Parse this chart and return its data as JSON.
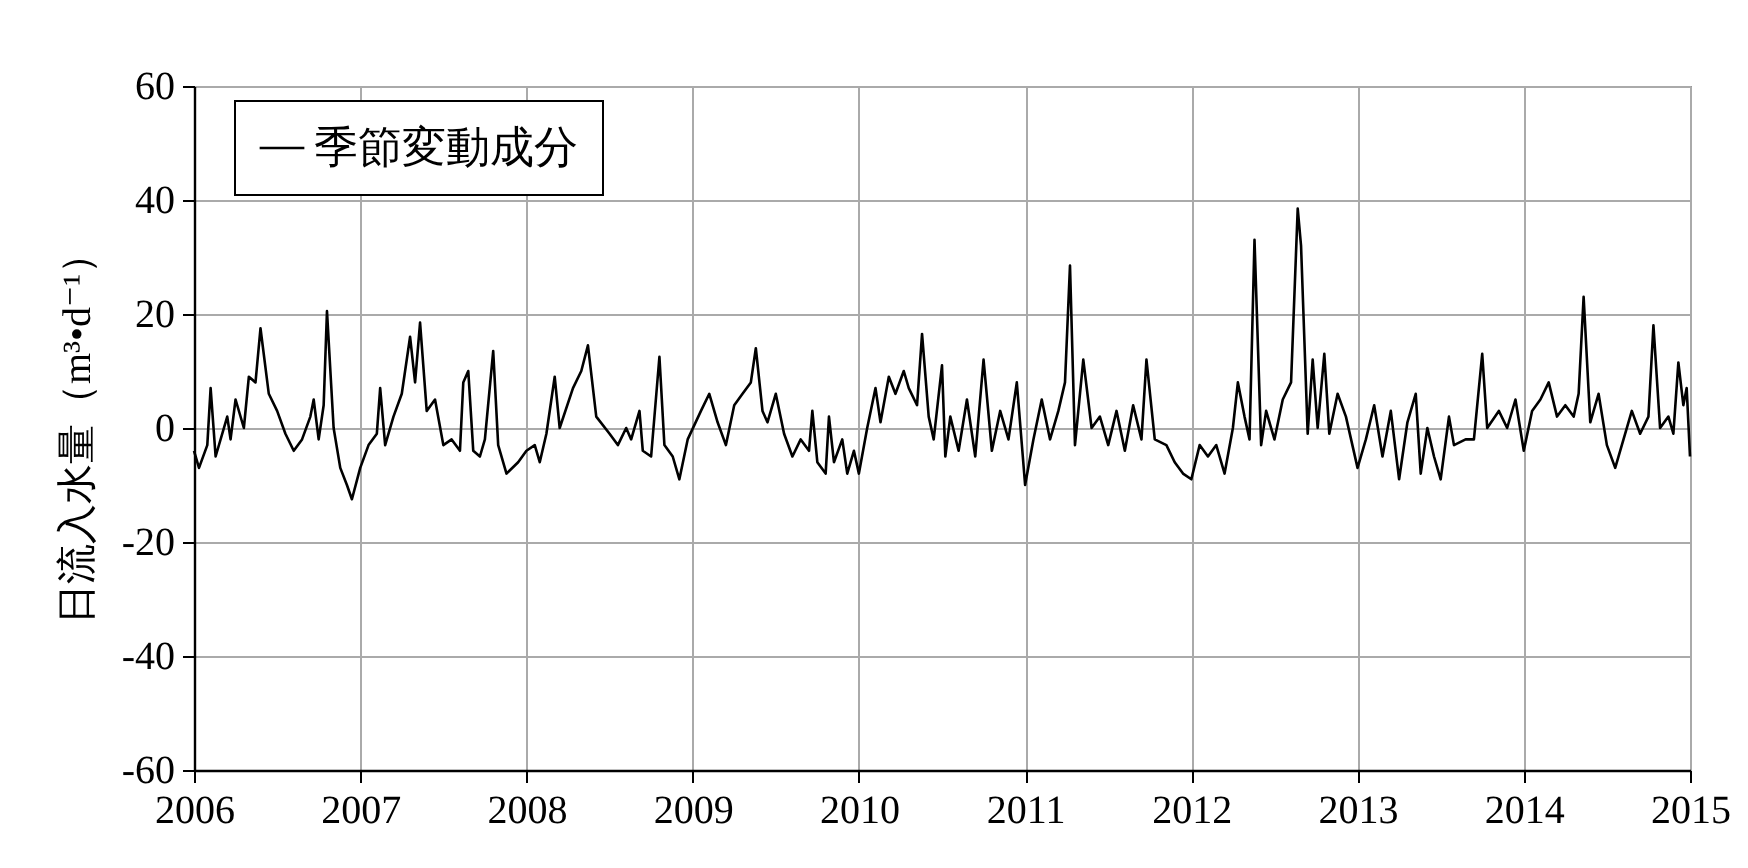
{
  "chart_data": {
    "type": "line",
    "ylabel": "日流入水量（m³•d⁻¹）",
    "xlim": [
      2006,
      2015
    ],
    "xticks": [
      2006,
      2007,
      2008,
      2009,
      2010,
      2011,
      2012,
      2013,
      2014,
      2015
    ],
    "ylim": [
      -60,
      60
    ],
    "yticks": [
      -60,
      -40,
      -20,
      0,
      20,
      40,
      60
    ],
    "grid": true,
    "legend": "top left",
    "line_style": "solid",
    "series": [
      {
        "name": "季節変動成分",
        "color": "#000000",
        "x": [
          2006.0,
          2006.03,
          2006.08,
          2006.1,
          2006.13,
          2006.2,
          2006.22,
          2006.25,
          2006.3,
          2006.33,
          2006.37,
          2006.4,
          2006.45,
          2006.5,
          2006.55,
          2006.6,
          2006.65,
          2006.7,
          2006.72,
          2006.75,
          2006.78,
          2006.8,
          2006.84,
          2006.88,
          2006.92,
          2006.95,
          2007.0,
          2007.05,
          2007.1,
          2007.12,
          2007.15,
          2007.2,
          2007.25,
          2007.3,
          2007.33,
          2007.36,
          2007.4,
          2007.45,
          2007.5,
          2007.55,
          2007.6,
          2007.62,
          2007.65,
          2007.68,
          2007.72,
          2007.75,
          2007.8,
          2007.83,
          2007.88,
          2007.95,
          2008.0,
          2008.05,
          2008.08,
          2008.12,
          2008.17,
          2008.2,
          2008.28,
          2008.33,
          2008.37,
          2008.42,
          2008.5,
          2008.55,
          2008.6,
          2008.63,
          2008.68,
          2008.7,
          2008.75,
          2008.8,
          2008.83,
          2008.88,
          2008.92,
          2008.97,
          2009.05,
          2009.1,
          2009.15,
          2009.2,
          2009.25,
          2009.3,
          2009.35,
          2009.38,
          2009.42,
          2009.45,
          2009.5,
          2009.55,
          2009.6,
          2009.65,
          2009.7,
          2009.72,
          2009.75,
          2009.8,
          2009.82,
          2009.85,
          2009.9,
          2009.93,
          2009.97,
          2010.0,
          2010.05,
          2010.1,
          2010.13,
          2010.18,
          2010.22,
          2010.27,
          2010.3,
          2010.35,
          2010.38,
          2010.42,
          2010.45,
          2010.5,
          2010.52,
          2010.55,
          2010.6,
          2010.65,
          2010.7,
          2010.75,
          2010.8,
          2010.85,
          2010.9,
          2010.95,
          2011.0,
          2011.05,
          2011.1,
          2011.15,
          2011.2,
          2011.24,
          2011.27,
          2011.3,
          2011.35,
          2011.4,
          2011.45,
          2011.5,
          2011.55,
          2011.6,
          2011.65,
          2011.7,
          2011.73,
          2011.78,
          2011.85,
          2011.9,
          2011.95,
          2012.0,
          2012.05,
          2012.1,
          2012.15,
          2012.2,
          2012.25,
          2012.28,
          2012.32,
          2012.35,
          2012.38,
          2012.42,
          2012.45,
          2012.5,
          2012.55,
          2012.6,
          2012.64,
          2012.66,
          2012.7,
          2012.73,
          2012.76,
          2012.8,
          2012.83,
          2012.88,
          2012.93,
          2013.0,
          2013.05,
          2013.1,
          2013.15,
          2013.2,
          2013.25,
          2013.3,
          2013.35,
          2013.38,
          2013.42,
          2013.46,
          2013.5,
          2013.55,
          2013.58,
          2013.65,
          2013.7,
          2013.75,
          2013.78,
          2013.85,
          2013.9,
          2013.95,
          2014.0,
          2014.05,
          2014.1,
          2014.15,
          2014.2,
          2014.25,
          2014.3,
          2014.33,
          2014.36,
          2014.4,
          2014.45,
          2014.5,
          2014.55,
          2014.6,
          2014.65,
          2014.7,
          2014.75,
          2014.78,
          2014.82,
          2014.87,
          2014.9,
          2014.93,
          2014.96,
          2014.98,
          2015.0
        ],
        "values": [
          -4,
          -7,
          -3,
          7,
          -5,
          2,
          -2,
          5,
          0,
          9,
          8,
          17.5,
          6,
          3,
          -1,
          -4,
          -2,
          2,
          5,
          -2,
          4,
          20.5,
          0,
          -7,
          -10,
          -12.5,
          -7,
          -3,
          -1,
          7,
          -3,
          2,
          6,
          16,
          8,
          18.5,
          3,
          5,
          -3,
          -2,
          -4,
          8,
          10,
          -4,
          -5,
          -2,
          13.5,
          -3,
          -8,
          -6,
          -4,
          -3,
          -6,
          -1,
          9,
          0,
          7,
          10,
          14.5,
          2,
          -1,
          -3,
          0,
          -2,
          3,
          -4,
          -5,
          12.5,
          -3,
          -5,
          -9,
          -2,
          3,
          6,
          1,
          -3,
          4,
          6,
          8,
          14,
          3,
          1,
          6,
          -1,
          -5,
          -2,
          -4,
          3,
          -6,
          -8,
          2,
          -6,
          -2,
          -8,
          -4,
          -8,
          0,
          7,
          1,
          9,
          6,
          10,
          7,
          4,
          16.5,
          2,
          -2,
          11,
          -5,
          2,
          -4,
          5,
          -5,
          12,
          -4,
          3,
          -2,
          8,
          -10,
          -2,
          5,
          -2,
          3,
          8,
          28.5,
          -3,
          12,
          0,
          2,
          -3,
          3,
          -4,
          4,
          -2,
          12,
          -2,
          -3,
          -6,
          -8,
          -9,
          -3,
          -5,
          -3,
          -8,
          0,
          8,
          2,
          -2,
          33,
          -3,
          3,
          -2,
          5,
          8,
          38.5,
          32,
          -1,
          12,
          0,
          13,
          -1,
          6,
          2,
          -7,
          -2,
          4,
          -5,
          3,
          -9,
          1,
          6,
          -8,
          0,
          -5,
          -9,
          2,
          -3,
          -2,
          -2,
          13,
          0,
          3,
          0,
          5,
          -4,
          3,
          5,
          8,
          2,
          4,
          2,
          6,
          23,
          1,
          6,
          -3,
          -7,
          -2,
          3,
          -1,
          2,
          18,
          0,
          2,
          -1,
          11.5,
          4,
          7,
          -5
        ]
      }
    ]
  }
}
